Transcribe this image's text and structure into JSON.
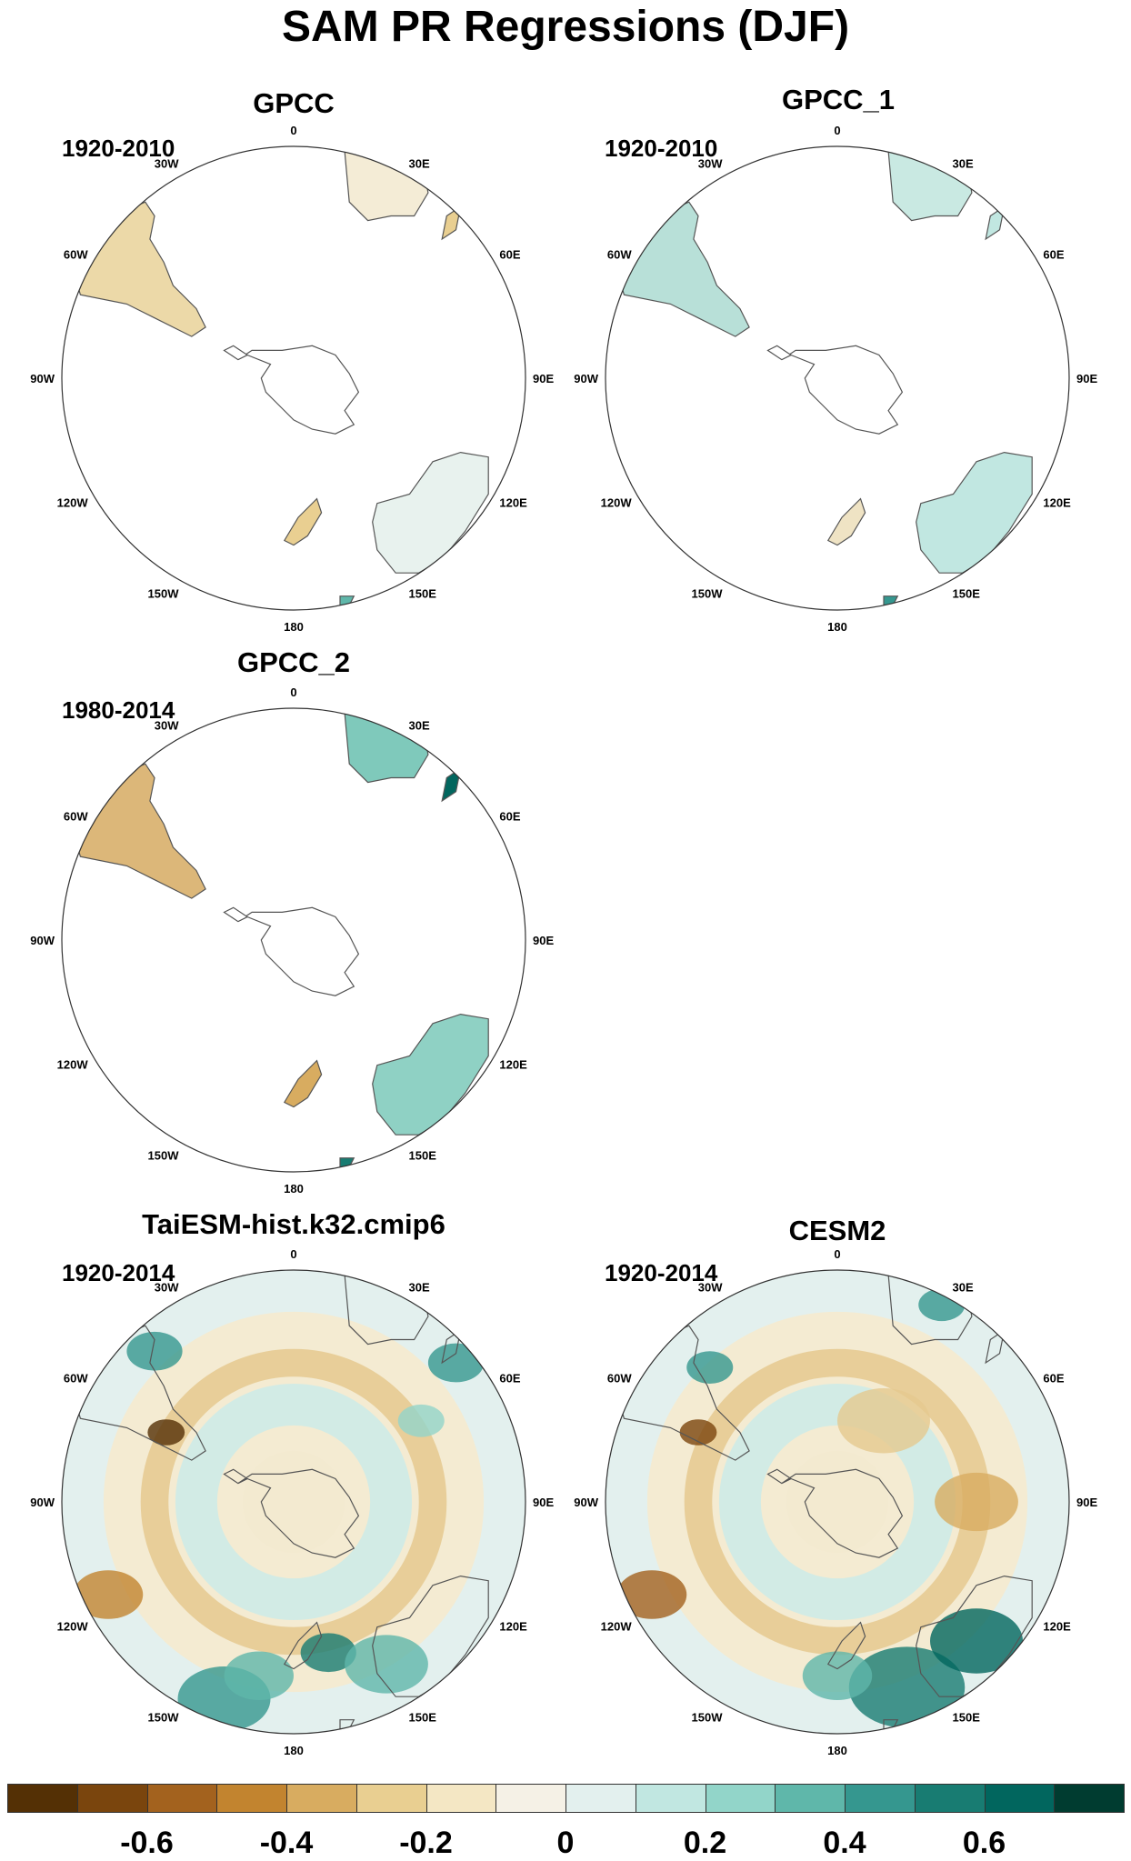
{
  "title": "SAM PR Regressions (DJF)",
  "lon_labels": [
    {
      "text": "0",
      "deg": 0
    },
    {
      "text": "30E",
      "deg": 30
    },
    {
      "text": "60E",
      "deg": 60
    },
    {
      "text": "90E",
      "deg": 90
    },
    {
      "text": "120E",
      "deg": 120
    },
    {
      "text": "150E",
      "deg": 150
    },
    {
      "text": "180",
      "deg": 180
    },
    {
      "text": "150W",
      "deg": 210
    },
    {
      "text": "120W",
      "deg": 240
    },
    {
      "text": "90W",
      "deg": 270
    },
    {
      "text": "60W",
      "deg": 300
    },
    {
      "text": "30W",
      "deg": 330
    }
  ],
  "panels": [
    {
      "id": "gpcc",
      "title": "GPCC",
      "period": "1920-2010",
      "coverage": "land"
    },
    {
      "id": "gpcc-1",
      "title": "GPCC_1",
      "period": "1920-2010",
      "coverage": "land"
    },
    {
      "id": "gpcc-2",
      "title": "GPCC_2",
      "period": "1980-2014",
      "coverage": "land"
    },
    {
      "id": "taiesm",
      "title": "TaiESM-hist.k32.cmip6",
      "period": "1920-2014",
      "coverage": "full"
    },
    {
      "id": "cesm2",
      "title": "CESM2",
      "period": "1920-2014",
      "coverage": "full"
    }
  ],
  "colorbar": {
    "colors": [
      "#543005",
      "#7a450d",
      "#a3621e",
      "#c2842f",
      "#d8ac60",
      "#e9cf91",
      "#f4e7c4",
      "#f5f1e6",
      "#e3f0ee",
      "#c1e7e1",
      "#92d5c9",
      "#5fb7aa",
      "#35978f",
      "#187c72",
      "#01665e",
      "#003c30"
    ],
    "tick_labels": [
      "-0.6",
      "-0.4",
      "-0.2",
      "0",
      "0.2",
      "0.4",
      "0.6"
    ]
  }
}
